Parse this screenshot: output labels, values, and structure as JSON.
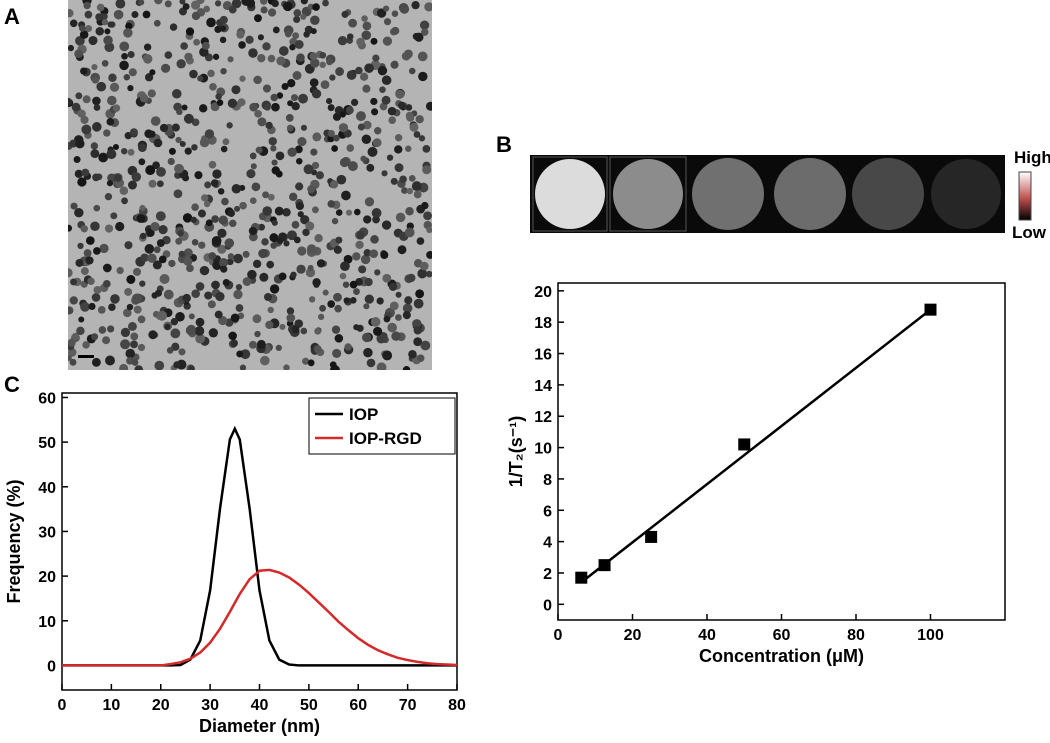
{
  "panel_labels": [
    "A",
    "B",
    "C"
  ],
  "colorbar": {
    "high": "High",
    "low": "Low"
  },
  "chart_data": [
    {
      "type": "line",
      "xlabel": "Diameter (nm)",
      "ylabel": "Frequency (%)",
      "x": [
        0,
        2,
        4,
        6,
        8,
        10,
        12,
        14,
        16,
        18,
        20,
        22,
        24,
        26,
        28,
        30,
        32,
        34,
        35,
        36,
        38,
        40,
        42,
        44,
        46,
        48,
        50,
        52,
        54,
        56,
        58,
        60,
        62,
        64,
        66,
        68,
        70,
        72,
        74,
        76,
        78,
        80
      ],
      "series": [
        {
          "name": "IOP",
          "color": "#000000",
          "values": [
            0,
            0,
            0,
            0,
            0,
            0,
            0,
            0,
            0,
            0,
            0,
            0,
            0.1,
            1.3,
            5.6,
            16.8,
            35.1,
            50.6,
            53,
            50.6,
            35.1,
            16.8,
            5.6,
            1.3,
            0.2,
            0,
            0,
            0,
            0,
            0,
            0,
            0,
            0,
            0,
            0,
            0,
            0,
            0,
            0,
            0,
            0,
            0
          ]
        },
        {
          "name": "IOP-RGD",
          "color": "#d42a2a",
          "values": [
            0,
            0,
            0,
            0,
            0,
            0,
            0,
            0,
            0,
            0,
            0,
            0.3,
            0.7,
            1.5,
            2.9,
            5.1,
            8.2,
            12.0,
            14.0,
            16.0,
            19.3,
            21.2,
            21.4,
            20.8,
            19.7,
            18.1,
            16.2,
            14.1,
            12.0,
            9.8,
            7.9,
            6.1,
            4.6,
            3.4,
            2.5,
            1.7,
            1.2,
            0.8,
            0.5,
            0.3,
            0.2,
            0.1
          ]
        }
      ],
      "xlim": [
        0,
        80
      ],
      "ylim": [
        -5.5,
        61
      ],
      "xticks": [
        0,
        10,
        20,
        30,
        40,
        50,
        60,
        70,
        80
      ],
      "yticks": [
        0,
        10,
        20,
        30,
        40,
        50,
        60
      ],
      "legend": "upper right"
    },
    {
      "type": "scatter",
      "xlabel": "Concentration (μM)",
      "ylabel": "1/T₂(s⁻¹)",
      "x": [
        6.25,
        12.5,
        25,
        50,
        100
      ],
      "values": [
        1.7,
        2.5,
        4.3,
        10.2,
        18.8
      ],
      "color": "#000000",
      "fit": {
        "x": [
          6.25,
          100
        ],
        "values": [
          1.4,
          18.8
        ]
      },
      "xlim": [
        0,
        120
      ],
      "ylim": [
        -1,
        20.5
      ],
      "xticks": [
        0,
        20,
        40,
        60,
        80,
        100
      ],
      "yticks": [
        0,
        2,
        4,
        6,
        8,
        10,
        12,
        14,
        16,
        18,
        20
      ]
    }
  ]
}
